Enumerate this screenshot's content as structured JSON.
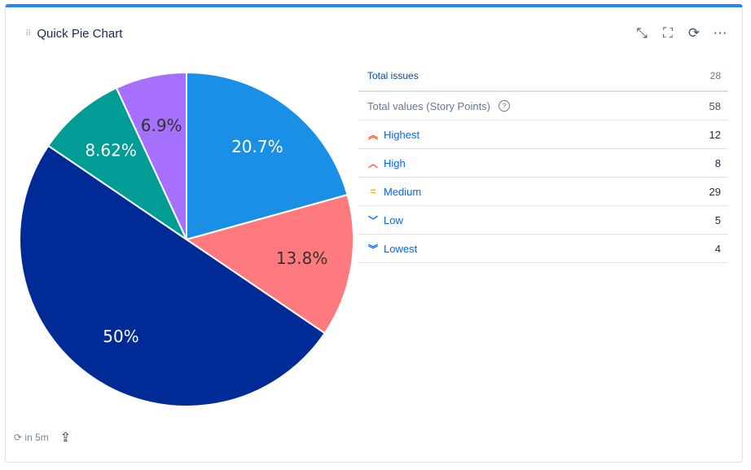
{
  "header": {
    "title": "Quick Pie Chart",
    "actions": [
      "minimize-icon",
      "fullscreen-icon",
      "refresh-icon",
      "more-icon"
    ]
  },
  "table": {
    "total_issues_label": "Total issues",
    "total_issues": "28",
    "total_values_label": "Total values (Story Points)",
    "total_values": "58",
    "rows": [
      {
        "label": "Highest",
        "value": "12",
        "icon": "priority-highest-icon",
        "color": "#ff5630"
      },
      {
        "label": "High",
        "value": "8",
        "icon": "priority-high-icon",
        "color": "#ff5630"
      },
      {
        "label": "Medium",
        "value": "29",
        "icon": "priority-medium-icon",
        "color": "#ffab00"
      },
      {
        "label": "Low",
        "value": "5",
        "icon": "priority-low-icon",
        "color": "#0065ff"
      },
      {
        "label": "Lowest",
        "value": "4",
        "icon": "priority-lowest-icon",
        "color": "#0065ff"
      }
    ]
  },
  "footer": {
    "refresh_text": "in 5m"
  },
  "chart_data": {
    "type": "pie",
    "categories": [
      "Highest",
      "High",
      "Medium",
      "Low",
      "Lowest"
    ],
    "values": [
      12,
      8,
      29,
      5,
      4
    ],
    "labels": [
      "20.7%",
      "13.8%",
      "50%",
      "8.62%",
      "6.9%"
    ],
    "colors": [
      "#1a8fe6",
      "#ff7a7e",
      "#002b97",
      "#009c95",
      "#a66ffd"
    ],
    "label_colors": [
      "#ffffff",
      "#333333",
      "#ffffff",
      "#ffffff",
      "#333333"
    ]
  }
}
